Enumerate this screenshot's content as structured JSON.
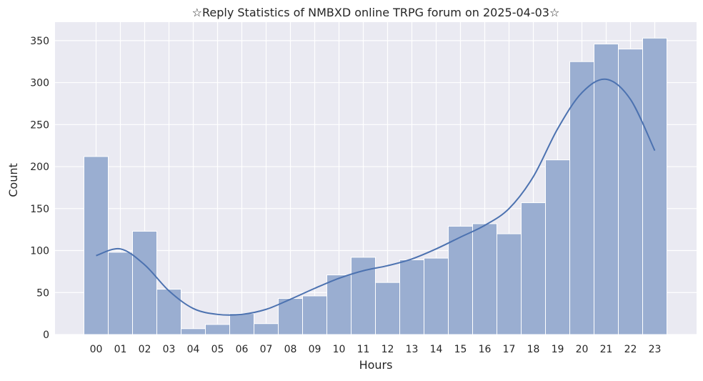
{
  "chart_data": {
    "type": "bar",
    "title": "☆Reply Statistics of NMBXD online TRPG forum on 2025-04-03☆",
    "xlabel": "Hours",
    "ylabel": "Count",
    "categories": [
      "00",
      "01",
      "02",
      "03",
      "04",
      "05",
      "06",
      "07",
      "08",
      "09",
      "10",
      "11",
      "12",
      "13",
      "14",
      "15",
      "16",
      "17",
      "18",
      "19",
      "20",
      "21",
      "22",
      "23"
    ],
    "values": [
      212,
      98,
      123,
      54,
      7,
      12,
      25,
      13,
      43,
      46,
      71,
      92,
      62,
      89,
      91,
      129,
      132,
      120,
      157,
      208,
      325,
      346,
      340,
      353
    ],
    "ylim": [
      0,
      372
    ],
    "yticks": [
      0,
      50,
      100,
      150,
      200,
      250,
      300,
      350
    ],
    "grid": true,
    "kde_curve": {
      "x": [
        0,
        1,
        2,
        3,
        4,
        5,
        6,
        7,
        8,
        9,
        10,
        11,
        12,
        13,
        14,
        15,
        16,
        17,
        18,
        19,
        20,
        21,
        22,
        23
      ],
      "y": [
        94,
        102,
        83,
        52,
        31,
        24,
        24,
        30,
        42,
        55,
        67,
        76,
        82,
        90,
        102,
        116,
        130,
        150,
        188,
        245,
        288,
        304,
        280,
        219
      ]
    },
    "colors": {
      "bar_fill": "#9aaed1",
      "bar_edge": "#ffffff",
      "kde_line": "#4c72b0",
      "plot_bg": "#eaeaf2",
      "grid": "#ffffff"
    }
  }
}
